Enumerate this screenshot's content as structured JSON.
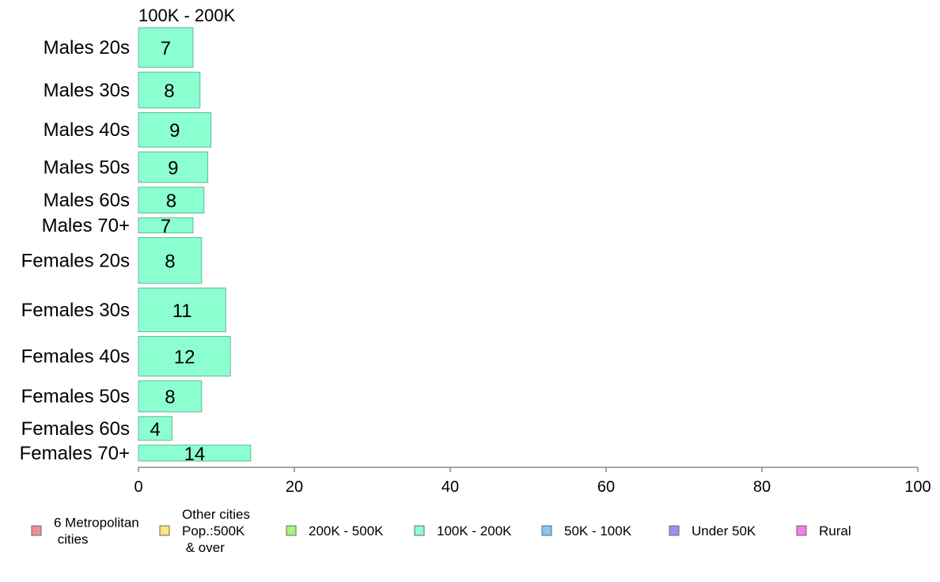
{
  "chart_data": {
    "type": "bar",
    "orientation": "horizontal",
    "title": "100K - 200K",
    "xlabel": "",
    "ylabel": "",
    "xlim": [
      0,
      100
    ],
    "xticks": [
      0,
      20,
      40,
      60,
      80,
      100
    ],
    "grid": false,
    "categories": [
      "Males 20s",
      "Males 30s",
      "Males 40s",
      "Males 50s",
      "Males 60s",
      "Males 70+",
      "Females 20s",
      "Females 30s",
      "Females 40s",
      "Females 50s",
      "Females 60s",
      "Females 70+"
    ],
    "values": [
      7,
      7.9,
      9.3,
      8.9,
      8.4,
      7,
      8.1,
      11.2,
      11.8,
      8.1,
      4.3,
      14.4
    ],
    "data_labels": [
      "7",
      "8",
      "9",
      "9",
      "8",
      "7",
      "8",
      "11",
      "12",
      "8",
      "4",
      "14"
    ],
    "row_weights": [
      1.0,
      0.9,
      0.87,
      0.77,
      0.65,
      0.38,
      1.15,
      1.1,
      1.0,
      0.78,
      0.6,
      0.4
    ],
    "bar_color": "#8CFFD1",
    "bar_stroke": "#5FB89A",
    "legend": {
      "placement": "bottom",
      "items": [
        {
          "lines": [
            "6 Metropolitan",
            " cities"
          ],
          "color": "#F28E8E"
        },
        {
          "lines": [
            "Other cities",
            "Pop.:500K",
            " & over"
          ],
          "color": "#FFE680"
        },
        {
          "lines": [
            "200K - 500K"
          ],
          "color": "#A6F57F"
        },
        {
          "lines": [
            "100K - 200K"
          ],
          "color": "#8CFFD1"
        },
        {
          "lines": [
            "50K - 100K"
          ],
          "color": "#88C6F5"
        },
        {
          "lines": [
            "Under 50K"
          ],
          "color": "#A98AF2"
        },
        {
          "lines": [
            "Rural"
          ],
          "color": "#F57FE6"
        }
      ]
    }
  }
}
